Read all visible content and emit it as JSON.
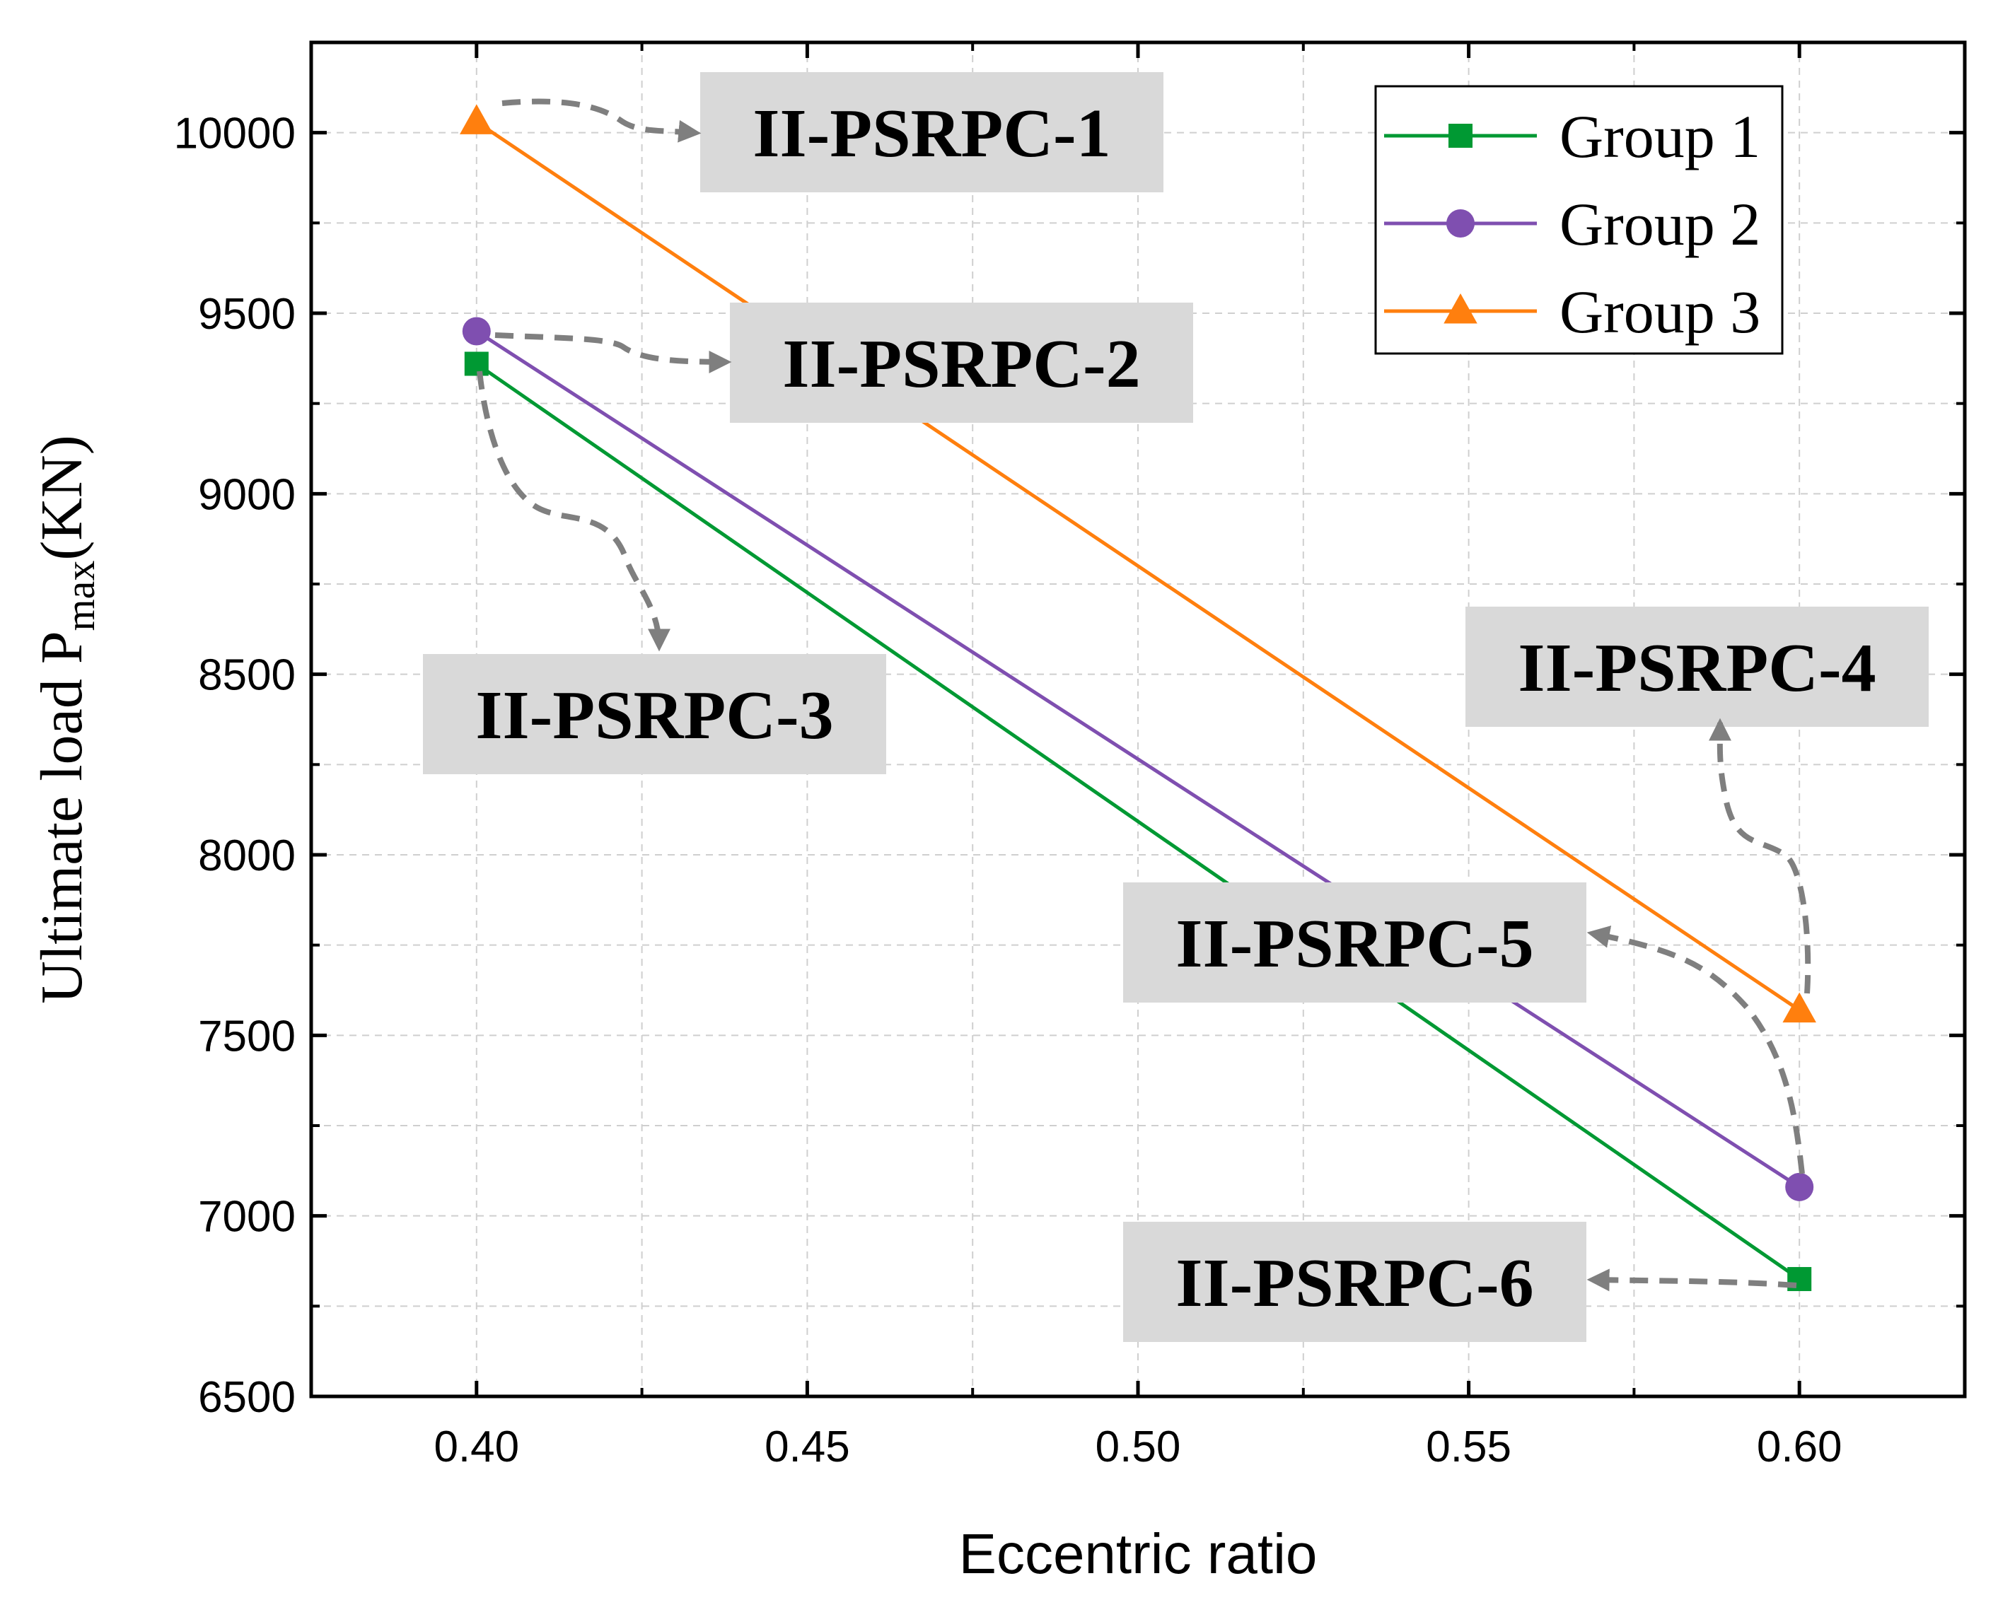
{
  "chart_data": {
    "type": "line",
    "title": "",
    "xlabel": "Eccentric ratio",
    "ylabel": {
      "prefix": "Ultimate load P",
      "subscript": "max",
      "suffix": "(KN)"
    },
    "xlim": [
      0.375,
      0.625
    ],
    "ylim": [
      6500,
      10250
    ],
    "x_ticks": [
      "0.40",
      "0.45",
      "0.50",
      "0.55",
      "0.60"
    ],
    "y_ticks": [
      "6500",
      "7000",
      "7500",
      "8000",
      "8500",
      "9000",
      "9500",
      "10000"
    ],
    "grid": true,
    "legend_position": "top-right",
    "series": [
      {
        "name": "Group 1",
        "color": "#009933",
        "marker": "square",
        "x": [
          0.4,
          0.6
        ],
        "y": [
          9360,
          6825
        ]
      },
      {
        "name": "Group 2",
        "color": "#7f4fb0",
        "marker": "circle",
        "x": [
          0.4,
          0.6
        ],
        "y": [
          9450,
          7080
        ]
      },
      {
        "name": "Group 3",
        "color": "#ff7f0e",
        "marker": "triangle",
        "x": [
          0.4,
          0.6
        ],
        "y": [
          10030,
          7570
        ]
      }
    ],
    "annotations": [
      {
        "text": "II-PSRPC-1",
        "target_series": "Group 3",
        "target_x": 0.4,
        "target_y": 10030
      },
      {
        "text": "II-PSRPC-2",
        "target_series": "Group 2",
        "target_x": 0.4,
        "target_y": 9450
      },
      {
        "text": "II-PSRPC-3",
        "target_series": "Group 1",
        "target_x": 0.4,
        "target_y": 9360
      },
      {
        "text": "II-PSRPC-4",
        "target_series": "Group 3",
        "target_x": 0.6,
        "target_y": 7570
      },
      {
        "text": "II-PSRPC-5",
        "target_series": "Group 2",
        "target_x": 0.6,
        "target_y": 7080
      },
      {
        "text": "II-PSRPC-6",
        "target_series": "Group 1",
        "target_x": 0.6,
        "target_y": 6825
      }
    ]
  }
}
